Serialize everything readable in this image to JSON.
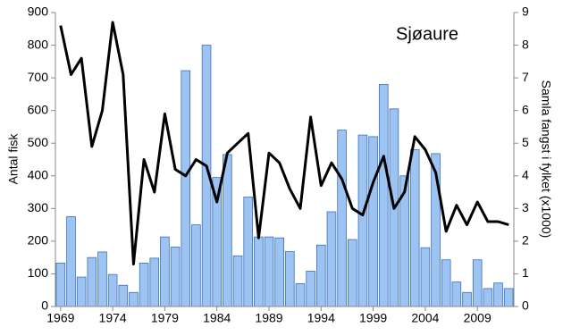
{
  "chart_data": {
    "type": "bar",
    "annotation": "Sjøaure",
    "y_label": "Antal fisk",
    "y2_label": "Samla fangst i fylket (x1000)",
    "categories": [
      "1969",
      null,
      null,
      null,
      null,
      "1974",
      null,
      null,
      null,
      null,
      "1979",
      null,
      null,
      null,
      null,
      "1984",
      null,
      null,
      null,
      null,
      "1989",
      null,
      null,
      null,
      null,
      "1994",
      null,
      null,
      null,
      null,
      "1999",
      null,
      null,
      null,
      null,
      "2004",
      null,
      null,
      null,
      null,
      "2009",
      null,
      null,
      null
    ],
    "series": [
      {
        "type": "bar",
        "color": "#9dc3f0",
        "values": [
          133,
          275,
          90,
          150,
          167,
          98,
          65,
          43,
          133,
          148,
          213,
          182,
          722,
          250,
          800,
          395,
          465,
          155,
          335,
          213,
          213,
          210,
          168,
          70,
          108,
          188,
          290,
          540,
          205,
          525,
          520,
          680,
          605,
          400,
          480,
          180,
          468,
          143,
          75,
          43,
          143,
          55,
          72,
          55
        ]
      },
      {
        "type": "line",
        "axis": "y2",
        "color": "#000000",
        "values": [
          8.6,
          7.1,
          7.6,
          4.9,
          6.0,
          8.7,
          7.1,
          1.3,
          4.5,
          3.5,
          5.9,
          4.2,
          4.0,
          4.5,
          4.3,
          3.2,
          4.7,
          5.0,
          5.3,
          2.1,
          4.7,
          4.4,
          3.6,
          3.0,
          5.8,
          3.7,
          4.4,
          3.9,
          3.0,
          2.8,
          3.8,
          4.6,
          3.0,
          3.5,
          5.2,
          4.8,
          4.1,
          2.3,
          3.1,
          2.5,
          3.2,
          2.6,
          2.6,
          2.5
        ]
      }
    ],
    "ylim": [
      0,
      900
    ],
    "yticks": [
      0,
      100,
      200,
      300,
      400,
      500,
      600,
      700,
      800,
      900
    ],
    "y2lim": [
      0,
      9
    ],
    "y2ticks": [
      0,
      1,
      2,
      3,
      4,
      5,
      6,
      7,
      8,
      9
    ]
  }
}
